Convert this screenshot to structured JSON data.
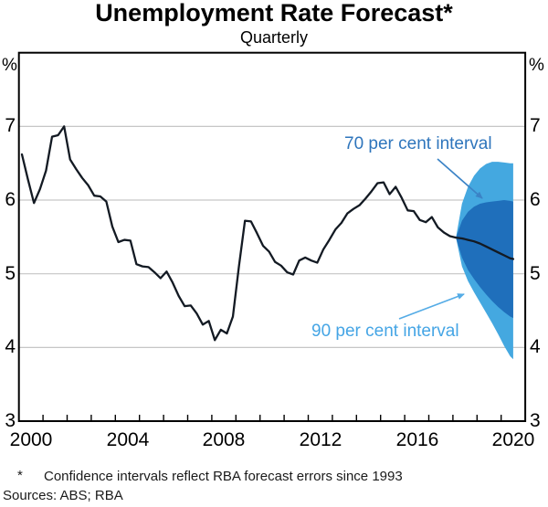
{
  "header": {
    "title": "Unemployment Rate Forecast*",
    "subtitle": "Quarterly"
  },
  "axis": {
    "unit_left": "%",
    "unit_right": "%",
    "y_tick_labels": [
      "7",
      "6",
      "5",
      "4",
      "3"
    ],
    "x_tick_labels": [
      "2000",
      "2004",
      "2008",
      "2012",
      "2016",
      "2020"
    ]
  },
  "annotations": {
    "interval70": "70 per cent interval",
    "interval90": "90 per cent interval"
  },
  "footer": {
    "marker": "*",
    "footnote": "Confidence intervals reflect RBA forecast errors since 1993",
    "sources": "Sources: ABS; RBA"
  },
  "colors": {
    "line": "#131A23",
    "band70": "#1F6FBB",
    "band90": "#44A8E0",
    "label70": "#2E75BC",
    "label90": "#45A5E5",
    "arrow70": "#3B83C6",
    "arrow90": "#55ACE6",
    "gridline": "#C6C6C6",
    "axis": "#000000"
  },
  "chart_data": {
    "type": "line",
    "title": "Unemployment Rate Forecast",
    "subtitle": "Quarterly",
    "ylabel": "%",
    "xlim": [
      2000,
      2021
    ],
    "ylim": [
      3,
      8
    ],
    "y_ticks": [
      3,
      4,
      5,
      6,
      7
    ],
    "y_gridlines": [
      4,
      5,
      6,
      7
    ],
    "x_ticks_labelled": [
      2000,
      2004,
      2008,
      2012,
      2016,
      2020
    ],
    "x_minor_tick_step": 1,
    "grid": "horizontal",
    "history": {
      "name": "Unemployment rate (quarterly)",
      "x_start": 2000.125,
      "x_step": 0.25,
      "values": [
        6.62,
        6.28,
        5.96,
        6.15,
        6.4,
        6.86,
        6.88,
        7.0,
        6.55,
        6.42,
        6.3,
        6.2,
        6.06,
        6.05,
        5.98,
        5.64,
        5.43,
        5.46,
        5.45,
        5.13,
        5.1,
        5.09,
        5.02,
        4.94,
        5.03,
        4.88,
        4.7,
        4.56,
        4.57,
        4.46,
        4.31,
        4.36,
        4.1,
        4.24,
        4.19,
        4.42,
        5.1,
        5.72,
        5.71,
        5.55,
        5.38,
        5.3,
        5.16,
        5.11,
        5.02,
        4.99,
        5.18,
        5.22,
        5.18,
        5.15,
        5.33,
        5.46,
        5.6,
        5.69,
        5.82,
        5.88,
        5.93,
        6.02,
        6.12,
        6.23,
        6.24,
        6.08,
        6.18,
        6.03,
        5.86,
        5.85,
        5.73,
        5.7,
        5.77,
        5.63,
        5.56,
        5.51,
        5.49
      ]
    },
    "forecast": {
      "name": "Central forecast with confidence intervals",
      "x": [
        2018.125,
        2018.375,
        2018.625,
        2018.875,
        2019.125,
        2019.375,
        2019.625,
        2019.875,
        2020.125,
        2020.375,
        2020.5
      ],
      "central": [
        5.49,
        5.48,
        5.46,
        5.44,
        5.41,
        5.37,
        5.33,
        5.29,
        5.25,
        5.21,
        5.2
      ],
      "band70": {
        "label": "70 per cent interval",
        "upper": [
          5.49,
          5.72,
          5.84,
          5.91,
          5.95,
          5.97,
          5.98,
          5.99,
          6.0,
          5.99,
          5.98
        ],
        "lower": [
          5.49,
          5.22,
          5.05,
          4.93,
          4.82,
          4.72,
          4.63,
          4.55,
          4.48,
          4.42,
          4.4
        ]
      },
      "band90": {
        "label": "90 per cent interval",
        "upper": [
          5.49,
          5.95,
          6.18,
          6.33,
          6.43,
          6.49,
          6.52,
          6.52,
          6.51,
          6.5,
          6.5
        ],
        "lower": [
          5.49,
          5.1,
          4.9,
          4.75,
          4.61,
          4.47,
          4.33,
          4.18,
          4.02,
          3.88,
          3.84
        ]
      }
    }
  }
}
